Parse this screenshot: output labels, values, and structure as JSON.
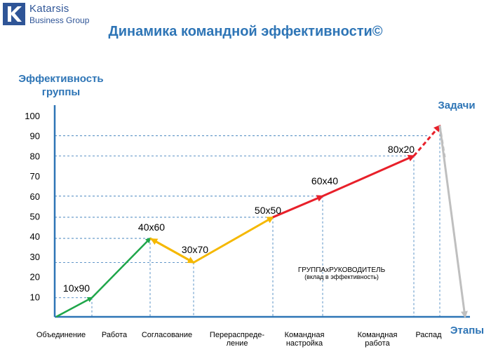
{
  "logo": {
    "name": "Katarsis",
    "sub": "Business Group",
    "color": "#2f5597"
  },
  "title": "Динамика командной эффективности©",
  "y_axis": {
    "title": [
      "Эффективность",
      "группы"
    ],
    "ticks": [
      10,
      20,
      30,
      40,
      50,
      60,
      70,
      80,
      90,
      100
    ]
  },
  "axis_labels": {
    "tasks": "Задачи",
    "stages": "Этапы"
  },
  "stages": [
    [
      "Объединение"
    ],
    [
      "Работа"
    ],
    [
      "Согласование"
    ],
    [
      "Перераспреде-",
      "ление"
    ],
    [
      "Командная",
      "настройка"
    ],
    [
      "Командная",
      "работа"
    ],
    [
      "Распад"
    ]
  ],
  "points": [
    {
      "label": "",
      "value": 0
    },
    {
      "label": "10x90",
      "value": 9.5
    },
    {
      "label": "40x60",
      "value": 39
    },
    {
      "label": "30x70",
      "value": 27
    },
    {
      "label": "50x50",
      "value": 49.5
    },
    {
      "label": "60x40",
      "value": 60
    },
    {
      "label": "80x20",
      "value": 80
    },
    {
      "label": "",
      "value": 95
    },
    {
      "label": "",
      "value": 0
    }
  ],
  "note": [
    "ГРУППАхРУКОВОДИТЕЛЬ",
    "(вклад в эффективность)"
  ],
  "colors": {
    "green": "#1fa64a",
    "yellow": "#f5b800",
    "red": "#e8202a",
    "gray": "#bfbfbf",
    "axis": "#2e75b6",
    "grid": "#2e75b6"
  }
}
